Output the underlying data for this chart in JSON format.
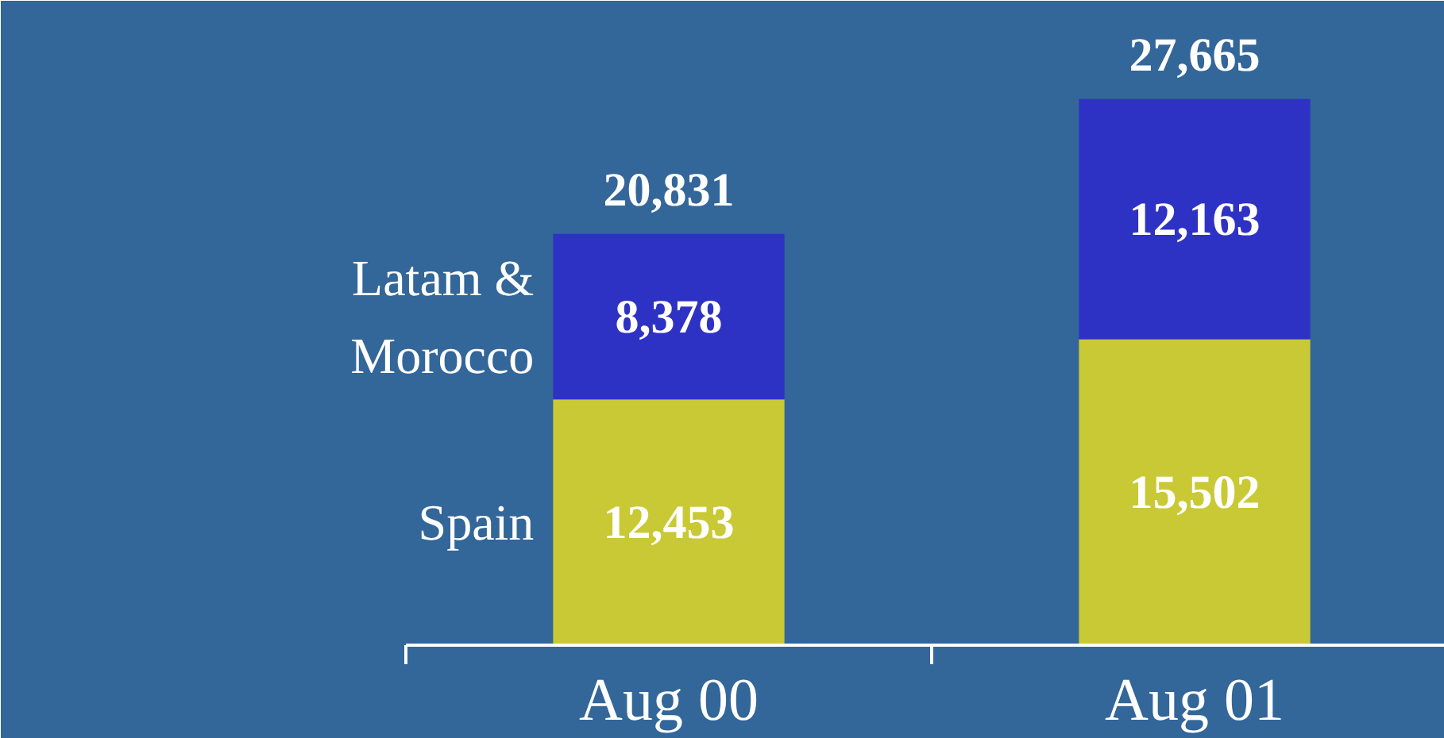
{
  "chart_data": {
    "type": "bar",
    "categories": [
      "Aug 00",
      "Aug 01"
    ],
    "stacked": true,
    "series": [
      {
        "name": "Spain",
        "color": "#c9c935",
        "values": [
          12453,
          15502
        ],
        "value_labels": [
          "12,453",
          "15,502"
        ]
      },
      {
        "name": "Latam & Morocco",
        "color": "#2e32c4",
        "values": [
          8378,
          12163
        ],
        "value_labels": [
          "8,378",
          "12,163"
        ]
      }
    ],
    "totals": [
      "20,831",
      "27,665"
    ]
  }
}
